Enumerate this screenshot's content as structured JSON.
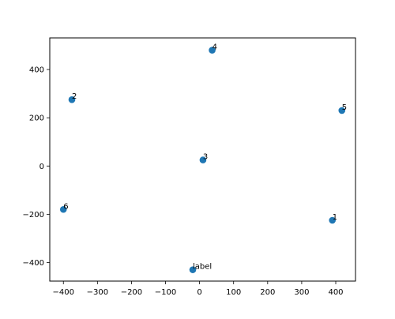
{
  "chart_data": {
    "type": "scatter",
    "title": "",
    "xlabel": "",
    "ylabel": "",
    "xlim": [
      -440,
      458
    ],
    "ylim": [
      -477,
      531
    ],
    "x_ticks": [
      -400,
      -300,
      -200,
      -100,
      0,
      100,
      200,
      300,
      400
    ],
    "y_ticks": [
      -400,
      -200,
      0,
      200,
      400
    ],
    "grid": false,
    "marker_color": "#1f77b4",
    "points": [
      {
        "label": "1",
        "x": 390,
        "y": -225
      },
      {
        "label": "2",
        "x": -375,
        "y": 275
      },
      {
        "label": "3",
        "x": 10,
        "y": 25
      },
      {
        "label": "4",
        "x": 37,
        "y": 480
      },
      {
        "label": "5",
        "x": 418,
        "y": 230
      },
      {
        "label": "6",
        "x": -400,
        "y": -180
      },
      {
        "label": "label",
        "x": -20,
        "y": -430
      }
    ]
  }
}
